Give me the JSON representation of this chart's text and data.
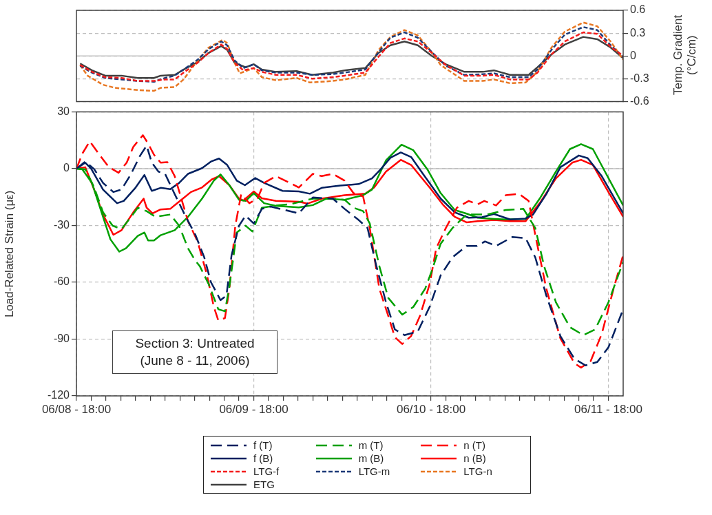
{
  "chart_data": [
    {
      "type": "line",
      "xlim": [
        "--06-08T18:00",
        "--06-11T20:00"
      ],
      "xticks": [
        {
          "value": "--06-09T18:00",
          "label": null
        },
        {
          "value": "--06-10T18:00",
          "label": null
        },
        {
          "value": "--06-11T18:00",
          "label": null
        }
      ],
      "y2lim": [
        -0.6,
        0.6
      ],
      "y2ticks": [
        0.6,
        0.3,
        0,
        -0.3,
        -0.6
      ],
      "y2label": "Temp. Gradient (°C/cm)",
      "tick_labels": "y",
      "grid": true,
      "legend": "bottom",
      "ref_lines": [
        {
          "axis": "y2",
          "value": 0,
          "color": "#bfbfbf",
          "line_style": "solid"
        }
      ],
      "series": [
        {
          "name": "LTG-f",
          "color": "#f41c1c",
          "line_style": "dashed",
          "axis": "y2",
          "x": [
            "--06-08T18:30",
            "--06-08T20:06",
            "--06-08T21:54",
            "--06-09T00:06",
            "--06-09T02:18",
            "--06-09T04:30",
            "--06-09T06:00",
            "--06-09T07:18",
            "--06-09T08:30",
            "--06-09T10:24",
            "--06-09T11:54",
            "--06-09T13:36",
            "--06-09T14:24",
            "--06-09T15:24",
            "--06-09T16:36",
            "--06-09T18:00",
            "--06-09T19:06",
            "--06-09T21:00",
            "--06-09T23:48",
            "--06-10T01:54",
            "--06-10T04:42",
            "--06-10T06:18",
            "--06-10T09:06",
            "--06-10T10:54",
            "--06-10T12:30",
            "--06-10T14:24",
            "--06-10T16:12",
            "--06-10T18:06",
            "--06-10T20:00",
            "--06-10T22:30",
            "--06-11T01:00",
            "--06-11T02:30",
            "--06-11T04:42",
            "--06-11T07:12",
            "--06-11T08:24",
            "--06-11T10:18",
            "--06-11T12:06",
            "--06-11T14:36",
            "--06-11T16:30",
            "--06-11T18:18",
            "--06-11T20:00"
          ],
          "values": [
            -0.12,
            -0.21,
            -0.28,
            -0.29,
            -0.33,
            -0.33,
            -0.31,
            -0.31,
            -0.22,
            -0.09,
            0.04,
            0.15,
            0.09,
            -0.09,
            -0.19,
            -0.16,
            -0.21,
            -0.25,
            -0.25,
            -0.3,
            -0.28,
            -0.26,
            -0.22,
            -0.01,
            0.17,
            0.23,
            0.19,
            0.04,
            -0.12,
            -0.26,
            -0.26,
            -0.25,
            -0.31,
            -0.31,
            -0.22,
            0.02,
            0.19,
            0.31,
            0.29,
            0.12,
            0
          ]
        },
        {
          "name": "LTG-m",
          "color": "#1c3a78",
          "line_style": "dashed",
          "axis": "y2",
          "x": [
            "--06-08T18:30",
            "--06-08T20:06",
            "--06-08T21:54",
            "--06-09T00:06",
            "--06-09T02:18",
            "--06-09T04:30",
            "--06-09T06:00",
            "--06-09T07:18",
            "--06-09T08:30",
            "--06-09T10:24",
            "--06-09T11:54",
            "--06-09T13:36",
            "--06-09T14:24",
            "--06-09T15:24",
            "--06-09T16:36",
            "--06-09T18:00",
            "--06-09T19:06",
            "--06-09T21:00",
            "--06-09T23:48",
            "--06-10T01:54",
            "--06-10T04:42",
            "--06-10T06:18",
            "--06-10T09:06",
            "--06-10T10:54",
            "--06-10T12:30",
            "--06-10T14:24",
            "--06-10T16:12",
            "--06-10T18:06",
            "--06-10T20:00",
            "--06-10T22:30",
            "--06-11T01:00",
            "--06-11T02:30",
            "--06-11T04:42",
            "--06-11T07:12",
            "--06-11T08:24",
            "--06-11T10:18",
            "--06-11T12:06",
            "--06-11T14:36",
            "--06-11T16:30",
            "--06-11T18:18",
            "--06-11T20:00"
          ],
          "values": [
            -0.13,
            -0.22,
            -0.29,
            -0.31,
            -0.33,
            -0.34,
            -0.29,
            -0.26,
            -0.18,
            -0.05,
            0.09,
            0.19,
            0.14,
            -0.06,
            -0.16,
            -0.11,
            -0.19,
            -0.22,
            -0.22,
            -0.25,
            -0.24,
            -0.22,
            -0.18,
            0.05,
            0.24,
            0.31,
            0.24,
            0.05,
            -0.13,
            -0.25,
            -0.24,
            -0.23,
            -0.28,
            -0.28,
            -0.18,
            0.08,
            0.28,
            0.38,
            0.34,
            0.14,
            -0.01
          ]
        },
        {
          "name": "LTG-n",
          "color": "#e87722",
          "line_style": "dashed",
          "axis": "y2",
          "x": [
            "--06-08T18:30",
            "--06-08T19:30",
            "--06-08T21:36",
            "--06-08T23:12",
            "--06-09T02:18",
            "--06-09T04:30",
            "--06-09T05:24",
            "--06-09T07:18",
            "--06-09T08:30",
            "--06-09T10:24",
            "--06-09T11:54",
            "--06-09T13:48",
            "--06-09T14:24",
            "--06-09T15:24",
            "--06-09T16:06",
            "--06-09T18:00",
            "--06-09T19:06",
            "--06-09T21:00",
            "--06-09T23:48",
            "--06-10T01:36",
            "--06-10T04:42",
            "--06-10T06:18",
            "--06-10T09:06",
            "--06-10T10:54",
            "--06-10T12:30",
            "--06-10T14:24",
            "--06-10T16:12",
            "--06-10T18:06",
            "--06-10T19:18",
            "--06-10T22:30",
            "--06-11T01:00",
            "--06-11T02:30",
            "--06-11T04:42",
            "--06-11T06:48",
            "--06-11T08:24",
            "--06-11T10:18",
            "--06-11T12:06",
            "--06-11T14:36",
            "--06-11T16:30",
            "--06-11T18:18",
            "--06-11T20:00"
          ],
          "values": [
            -0.12,
            -0.26,
            -0.38,
            -0.42,
            -0.45,
            -0.46,
            -0.42,
            -0.41,
            -0.31,
            -0.06,
            0.11,
            0.21,
            0.17,
            -0.09,
            -0.23,
            -0.16,
            -0.28,
            -0.32,
            -0.29,
            -0.35,
            -0.33,
            -0.31,
            -0.25,
            0.08,
            0.25,
            0.34,
            0.27,
            0.05,
            -0.12,
            -0.33,
            -0.33,
            -0.31,
            -0.36,
            -0.35,
            -0.21,
            0.11,
            0.32,
            0.44,
            0.39,
            0.19,
            -0.05
          ]
        },
        {
          "name": "ETG",
          "color": "#404040",
          "line_style": "solid",
          "axis": "y2",
          "x": [
            "--06-08T18:30",
            "--06-08T20:06",
            "--06-08T21:54",
            "--06-09T00:06",
            "--06-09T02:18",
            "--06-09T04:30",
            "--06-09T05:24",
            "--06-09T07:18",
            "--06-09T08:30",
            "--06-09T10:24",
            "--06-09T11:54",
            "--06-09T13:36",
            "--06-09T14:24",
            "--06-09T15:24",
            "--06-09T16:54",
            "--06-09T18:00",
            "--06-09T19:06",
            "--06-09T21:00",
            "--06-09T23:48",
            "--06-10T01:54",
            "--06-10T04:42",
            "--06-10T06:18",
            "--06-10T09:06",
            "--06-10T10:54",
            "--06-10T12:30",
            "--06-10T14:24",
            "--06-10T16:12",
            "--06-10T18:06",
            "--06-10T20:00",
            "--06-10T22:30",
            "--06-11T01:00",
            "--06-11T02:30",
            "--06-11T04:42",
            "--06-11T07:12",
            "--06-11T08:24",
            "--06-11T10:18",
            "--06-11T12:06",
            "--06-11T14:36",
            "--06-11T16:30",
            "--06-11T18:18",
            "--06-11T20:00"
          ],
          "values": [
            -0.1,
            -0.19,
            -0.26,
            -0.26,
            -0.29,
            -0.29,
            -0.26,
            -0.25,
            -0.18,
            -0.08,
            0.04,
            0.13,
            0.08,
            -0.09,
            -0.15,
            -0.11,
            -0.18,
            -0.21,
            -0.2,
            -0.25,
            -0.22,
            -0.19,
            -0.16,
            0.04,
            0.14,
            0.19,
            0.14,
            0,
            -0.11,
            -0.21,
            -0.21,
            -0.19,
            -0.25,
            -0.25,
            -0.15,
            0.02,
            0.15,
            0.25,
            0.22,
            0.11,
            -0.03
          ]
        }
      ]
    },
    {
      "type": "line",
      "xlim": [
        "--06-08T18:00",
        "--06-11T20:00"
      ],
      "xticks": [
        {
          "value": "--06-08T18:00",
          "label": "06/08 - 18:00"
        },
        {
          "value": "--06-08T20:00",
          "label": null
        },
        {
          "value": "--06-08T22:00",
          "label": null
        },
        {
          "value": "--06-09T00:00",
          "label": null
        },
        {
          "value": "--06-09T02:00",
          "label": null
        },
        {
          "value": "--06-09T04:00",
          "label": null
        },
        {
          "value": "--06-09T06:00",
          "label": null
        },
        {
          "value": "--06-09T08:00",
          "label": null
        },
        {
          "value": "--06-09T10:00",
          "label": null
        },
        {
          "value": "--06-09T12:00",
          "label": null
        },
        {
          "value": "--06-09T14:00",
          "label": null
        },
        {
          "value": "--06-09T16:00",
          "label": null
        },
        {
          "value": "--06-09T18:00",
          "label": "06/09 - 18:00"
        },
        {
          "value": "--06-09T20:00",
          "label": null
        },
        {
          "value": "--06-09T22:00",
          "label": null
        },
        {
          "value": "--06-10T00:00",
          "label": null
        },
        {
          "value": "--06-10T02:00",
          "label": null
        },
        {
          "value": "--06-10T04:00",
          "label": null
        },
        {
          "value": "--06-10T06:00",
          "label": null
        },
        {
          "value": "--06-10T08:00",
          "label": null
        },
        {
          "value": "--06-10T10:00",
          "label": null
        },
        {
          "value": "--06-10T12:00",
          "label": null
        },
        {
          "value": "--06-10T14:00",
          "label": null
        },
        {
          "value": "--06-10T16:00",
          "label": null
        },
        {
          "value": "--06-10T18:00",
          "label": "06/10 - 18:00"
        },
        {
          "value": "--06-10T20:00",
          "label": null
        },
        {
          "value": "--06-10T22:00",
          "label": null
        },
        {
          "value": "--06-11T00:00",
          "label": null
        },
        {
          "value": "--06-11T02:00",
          "label": null
        },
        {
          "value": "--06-11T04:00",
          "label": null
        },
        {
          "value": "--06-11T06:00",
          "label": null
        },
        {
          "value": "--06-11T08:00",
          "label": null
        },
        {
          "value": "--06-11T10:00",
          "label": null
        },
        {
          "value": "--06-11T12:00",
          "label": null
        },
        {
          "value": "--06-11T14:00",
          "label": null
        },
        {
          "value": "--06-11T16:00",
          "label": null
        },
        {
          "value": "--06-11T18:00",
          "label": "06/11 - 18:00"
        }
      ],
      "ylim": [
        -120,
        30
      ],
      "yticks": [
        30,
        0,
        -30,
        -60,
        -90,
        -120
      ],
      "ylabel": "Load-Related Strain (με)",
      "grid": true,
      "legend": "bottom",
      "annotations": [
        "Section 3: Untreated\n(June 8 - 11, 2006)"
      ],
      "ref_lines": [
        {
          "axis": "y",
          "value": 0,
          "color": "#bfbfbf",
          "line_style": "solid"
        }
      ],
      "series": [
        {
          "name": "f (T)",
          "color": "#002060",
          "line_style": "dashed",
          "x": [
            "--06-08T18:00",
            "--06-08T19:12",
            "--06-08T20:24",
            "--06-08T21:36",
            "--06-08T23:00",
            "--06-09T00:06",
            "--06-09T01:24",
            "--06-09T02:36",
            "--06-09T03:30",
            "--06-09T04:12",
            "--06-09T05:06",
            "--06-09T06:00",
            "--06-09T07:18",
            "--06-09T08:48",
            "--06-09T10:06",
            "--06-09T11:18",
            "--06-09T12:12",
            "--06-09T13:30",
            "--06-09T14:18",
            "--06-09T15:00",
            "--06-09T16:00",
            "--06-09T16:54",
            "--06-09T18:00",
            "--06-09T19:06",
            "--06-09T20:18",
            "--06-09T22:12",
            "--06-10T00:06",
            "--06-10T02:00",
            "--06-10T04:42",
            "--06-10T06:18",
            "--06-10T08:12",
            "--06-10T09:24",
            "--06-10T10:36",
            "--06-10T11:54",
            "--06-10T13:06",
            "--06-10T14:24",
            "--06-10T16:12",
            "--06-10T17:48",
            "--06-10T19:18",
            "--06-10T20:54",
            "--06-10T22:48",
            "--06-11T00:12",
            "--06-11T01:18",
            "--06-11T02:48",
            "--06-11T05:00",
            "--06-11T06:48",
            "--06-11T08:06",
            "--06-11T09:36",
            "--06-11T11:30",
            "--06-11T13:24",
            "--06-11T14:54",
            "--06-11T16:30",
            "--06-11T18:00",
            "--06-11T20:00"
          ],
          "values": [
            0,
            3.8,
            -0.2,
            -7.5,
            -12.3,
            -11,
            -2.7,
            6.8,
            12.2,
            3.2,
            -1.5,
            -2.7,
            -13.4,
            -25.4,
            -34.9,
            -46.8,
            -59.9,
            -69.4,
            -67,
            -45.6,
            -30.1,
            -24.8,
            -28.9,
            -21.2,
            -20,
            -21.8,
            -23.6,
            -15.2,
            -15.8,
            -21.2,
            -27.1,
            -31.3,
            -51.5,
            -70.6,
            -84.9,
            -87.9,
            -86,
            -73,
            -56.3,
            -46.8,
            -40.8,
            -40.8,
            -38.4,
            -40.8,
            -36.1,
            -36.7,
            -46.8,
            -67,
            -88.4,
            -100.4,
            -103.9,
            -102.1,
            -94.4,
            -74.2
          ]
        },
        {
          "name": "m (T)",
          "color": "#00a000",
          "line_style": "dashed",
          "x": [
            "--06-08T18:00",
            "--06-08T19:12",
            "--06-08T20:24",
            "--06-08T21:36",
            "--06-08T22:54",
            "--06-09T00:06",
            "--06-09T01:24",
            "--06-09T02:18",
            "--06-09T03:30",
            "--06-09T04:42",
            "--06-09T06:42",
            "--06-09T07:54",
            "--06-09T09:06",
            "--06-09T10:00",
            "--06-09T10:42",
            "--06-09T11:54",
            "--06-09T13:12",
            "--06-09T14:06",
            "--06-09T14:42",
            "--06-09T15:42",
            "--06-09T16:54",
            "--06-09T17:48",
            "--06-09T19:06",
            "--06-09T21:00",
            "--06-09T22:54",
            "--06-10T02:00",
            "--06-10T04:42",
            "--06-10T06:18",
            "--06-10T07:30",
            "--06-10T08:48",
            "--06-10T09:42",
            "--06-10T11:00",
            "--06-10T12:12",
            "--06-10T14:06",
            "--06-10T15:36",
            "--06-10T17:12",
            "--06-10T18:06",
            "--06-10T19:18",
            "--06-10T20:54",
            "--06-10T22:48",
            "--06-11T00:18",
            "--06-11T01:36",
            "--06-11T04:06",
            "--06-11T06:30",
            "--06-11T08:06",
            "--06-11T09:18",
            "--06-11T10:54",
            "--06-11T12:48",
            "--06-11T14:36",
            "--06-11T16:12",
            "--06-11T18:00",
            "--06-11T20:00"
          ],
          "values": [
            0,
            -0.3,
            -9.9,
            -23,
            -30.1,
            -31.9,
            -25.4,
            -20.6,
            -22.4,
            -25.4,
            -24.2,
            -30.1,
            -42,
            -48,
            -51.5,
            -61,
            -74.2,
            -75.3,
            -62.3,
            -33.7,
            -30.1,
            -33.1,
            -20.6,
            -19.4,
            -18.8,
            -15.8,
            -15.8,
            -16.4,
            -20.6,
            -22.4,
            -28.9,
            -51.5,
            -68.2,
            -77.1,
            -73,
            -63.4,
            -53.9,
            -39.6,
            -31.3,
            -24.2,
            -24.2,
            -24.2,
            -21.8,
            -21.2,
            -31.3,
            -51.5,
            -70.6,
            -83.7,
            -87.9,
            -84.9,
            -70.6,
            -49.2
          ]
        },
        {
          "name": "n (T)",
          "color": "#ff0000",
          "line_style": "dashed",
          "x": [
            "--06-08T18:00",
            "--06-08T18:48",
            "--06-08T19:48",
            "--06-08T21:00",
            "--06-08T22:24",
            "--06-08T23:42",
            "--06-09T00:48",
            "--06-09T01:42",
            "--06-09T03:00",
            "--06-09T03:42",
            "--06-09T04:30",
            "--06-09T05:24",
            "--06-09T06:18",
            "--06-09T07:18",
            "--06-09T08:12",
            "--06-09T09:06",
            "--06-09T10:24",
            "--06-09T11:36",
            "--06-09T12:36",
            "--06-09T13:12",
            "--06-09T14:06",
            "--06-09T14:42",
            "--06-09T15:30",
            "--06-09T16:18",
            "--06-09T17:24",
            "--06-09T18:30",
            "--06-09T19:24",
            "--06-09T21:00",
            "--06-09T22:54",
            "--06-10T00:06",
            "--06-10T02:00",
            "--06-10T03:12",
            "--06-10T04:42",
            "--06-10T06:18",
            "--06-10T07:30",
            "--06-10T08:48",
            "--06-10T09:42",
            "--06-10T11:00",
            "--06-10T12:12",
            "--06-10T13:06",
            "--06-10T14:06",
            "--06-10T15:18",
            "--06-10T16:30",
            "--06-10T17:48",
            "--06-10T18:42",
            "--06-10T20:00",
            "--06-10T21:30",
            "--06-10T23:06",
            "--06-11T00:18",
            "--06-11T01:12",
            "--06-11T02:48",
            "--06-11T04:06",
            "--06-11T05:54",
            "--06-11T07:12",
            "--06-11T08:06",
            "--06-11T09:36",
            "--06-11T11:30",
            "--06-11T13:24",
            "--06-11T14:18",
            "--06-11T15:36",
            "--06-11T17:06",
            "--06-11T18:42",
            "--06-11T20:00"
          ],
          "values": [
            0,
            8,
            14.5,
            8,
            0.8,
            -2.1,
            3.2,
            11.6,
            17.7,
            13.3,
            7.4,
            3.2,
            3.5,
            -3.9,
            -15.8,
            -27.7,
            -38.4,
            -55.1,
            -73,
            -80.1,
            -78.9,
            -63.4,
            -30.1,
            -13.4,
            -18.2,
            -15.8,
            -7.5,
            -3.9,
            -7.5,
            -9.9,
            -2.7,
            -3.9,
            -2.7,
            -6.3,
            -12.9,
            -14.6,
            -31.3,
            -63.4,
            -77.7,
            -89,
            -92.6,
            -88.4,
            -77.7,
            -61,
            -42,
            -31.3,
            -20.6,
            -17,
            -18.8,
            -17,
            -19.4,
            -14,
            -13.2,
            -17,
            -34.9,
            -63.4,
            -89.6,
            -102.7,
            -105.1,
            -101.6,
            -87.3,
            -63.4,
            -45.6
          ]
        },
        {
          "name": "f (B)",
          "color": "#002060",
          "line_style": "solid",
          "x": [
            "--06-08T18:00",
            "--06-08T19:12",
            "--06-08T20:00",
            "--06-08T21:36",
            "--06-08T23:30",
            "--06-09T00:24",
            "--06-09T02:00",
            "--06-09T03:12",
            "--06-09T04:12",
            "--06-09T05:24",
            "--06-09T06:42",
            "--06-09T07:54",
            "--06-09T09:06",
            "--06-09T11:00",
            "--06-09T12:12",
            "--06-09T13:18",
            "--06-09T14:24",
            "--06-09T15:42",
            "--06-09T16:48",
            "--06-09T18:12",
            "--06-09T19:24",
            "--06-09T21:54",
            "--06-10T00:06",
            "--06-10T01:36",
            "--06-10T03:12",
            "--06-10T05:42",
            "--06-10T06:18",
            "--06-10T08:12",
            "--06-10T10:00",
            "--06-10T11:12",
            "--06-10T12:30",
            "--06-10T13:54",
            "--06-10T15:18",
            "--06-10T16:54",
            "--06-10T19:18",
            "--06-10T21:12",
            "--06-10T23:06",
            "--06-11T00:54",
            "--06-11T02:30",
            "--06-11T04:42",
            "--06-11T06:48",
            "--06-11T07:48",
            "--06-11T09:36",
            "--06-11T11:30",
            "--06-11T14:00",
            "--06-11T15:12",
            "--06-11T17:06",
            "--06-11T20:00"
          ],
          "values": [
            0,
            3.2,
            0,
            -11,
            -18.2,
            -17,
            -10,
            -3.3,
            -11.7,
            -10.1,
            -10.8,
            -7.5,
            -2.7,
            0.3,
            3.8,
            5.4,
            2,
            -6.3,
            -8.7,
            -4.9,
            -7.5,
            -11.7,
            -12,
            -13.2,
            -10.1,
            -8.9,
            -8.7,
            -8.1,
            -5.1,
            -0.2,
            5.8,
            8.6,
            6.2,
            -2.7,
            -15.8,
            -23,
            -25.9,
            -25.6,
            -23.9,
            -26.8,
            -26.3,
            -24.2,
            -13.4,
            0.8,
            7,
            5.6,
            -3.9,
            -23.6
          ]
        },
        {
          "name": "m (B)",
          "color": "#00a000",
          "line_style": "solid",
          "x": [
            "--06-08T18:00",
            "--06-08T18:48",
            "--06-08T20:06",
            "--06-08T21:18",
            "--06-08T22:36",
            "--06-08T23:48",
            "--06-09T00:42",
            "--06-09T02:18",
            "--06-09T03:12",
            "--06-09T03:42",
            "--06-09T04:30",
            "--06-09T05:24",
            "--06-09T07:18",
            "--06-09T09:06",
            "--06-09T11:00",
            "--06-09T12:36",
            "--06-09T13:30",
            "--06-09T14:42",
            "--06-09T16:00",
            "--06-09T16:54",
            "--06-09T18:00",
            "--06-09T19:24",
            "--06-09T21:00",
            "--06-10T00:06",
            "--06-10T02:00",
            "--06-10T03:48",
            "--06-10T06:18",
            "--06-10T08:48",
            "--06-10T10:00",
            "--06-10T11:54",
            "--06-10T14:00",
            "--06-10T15:36",
            "--06-10T17:30",
            "--06-10T19:18",
            "--06-10T21:12",
            "--06-10T22:48",
            "--06-11T00:18",
            "--06-11T02:30",
            "--06-11T04:06",
            "--06-11T06:48",
            "--06-11T08:42",
            "--06-11T10:54",
            "--06-11T12:48",
            "--06-11T14:18",
            "--06-11T15:54",
            "--06-11T17:42",
            "--06-11T20:00"
          ],
          "values": [
            0,
            -0.3,
            -7.5,
            -21.8,
            -37.3,
            -43.8,
            -42,
            -35.5,
            -33.7,
            -37.9,
            -37.9,
            -35.1,
            -32.5,
            -25.4,
            -15.8,
            -6.3,
            -3,
            -8.7,
            -16.4,
            -17,
            -12.9,
            -18.2,
            -19.6,
            -20.4,
            -19.2,
            -15.8,
            -16.4,
            -14,
            -11,
            4.4,
            12.7,
            9.8,
            -0.3,
            -12.9,
            -21.8,
            -23.7,
            -25.9,
            -26.5,
            -26.8,
            -26.5,
            -15.8,
            -1.5,
            10.4,
            13,
            10.4,
            -2.7,
            -19.4
          ]
        },
        {
          "name": "n (B)",
          "color": "#ff0000",
          "line_style": "solid",
          "x": [
            "--06-08T18:00",
            "--06-08T19:12",
            "--06-08T20:24",
            "--06-08T21:36",
            "--06-08T23:00",
            "--06-09T00:06",
            "--06-09T01:42",
            "--06-09T03:06",
            "--06-09T03:30",
            "--06-09T04:18",
            "--06-09T05:24",
            "--06-09T06:42",
            "--06-09T08:12",
            "--06-09T09:30",
            "--06-09T11:00",
            "--06-09T12:18",
            "--06-09T13:18",
            "--06-09T14:42",
            "--06-09T16:00",
            "--06-09T16:36",
            "--06-09T18:00",
            "--06-09T19:06",
            "--06-09T21:00",
            "--06-10T00:06",
            "--06-10T01:18",
            "--06-10T03:12",
            "--06-10T06:18",
            "--06-10T09:06",
            "--06-10T10:18",
            "--06-10T11:54",
            "--06-10T13:54",
            "--06-10T15:18",
            "--06-10T17:48",
            "--06-10T19:42",
            "--06-10T21:12",
            "--06-10T22:48",
            "--06-11T00:18",
            "--06-11T02:30",
            "--06-11T04:42",
            "--06-11T06:48",
            "--06-11T08:42",
            "--06-11T10:54",
            "--06-11T13:06",
            "--06-11T14:18",
            "--06-11T15:54",
            "--06-11T18:00",
            "--06-11T20:00"
          ],
          "values": [
            0,
            0.8,
            -11,
            -24.2,
            -34.9,
            -32.5,
            -23,
            -15.8,
            -20.6,
            -23.6,
            -21.5,
            -21.2,
            -16.4,
            -12.3,
            -9.9,
            -5.7,
            -3.9,
            -8.7,
            -15.8,
            -16.8,
            -12,
            -15.6,
            -17,
            -17.4,
            -18.4,
            -15.8,
            -14,
            -13.2,
            -9.9,
            -1.5,
            4.7,
            2,
            -9.9,
            -19.4,
            -25.4,
            -28.3,
            -27.7,
            -27.1,
            -27.7,
            -27.7,
            -18.2,
            -5.1,
            3.2,
            4.7,
            2,
            -12.3,
            -25.4
          ]
        }
      ]
    }
  ]
}
